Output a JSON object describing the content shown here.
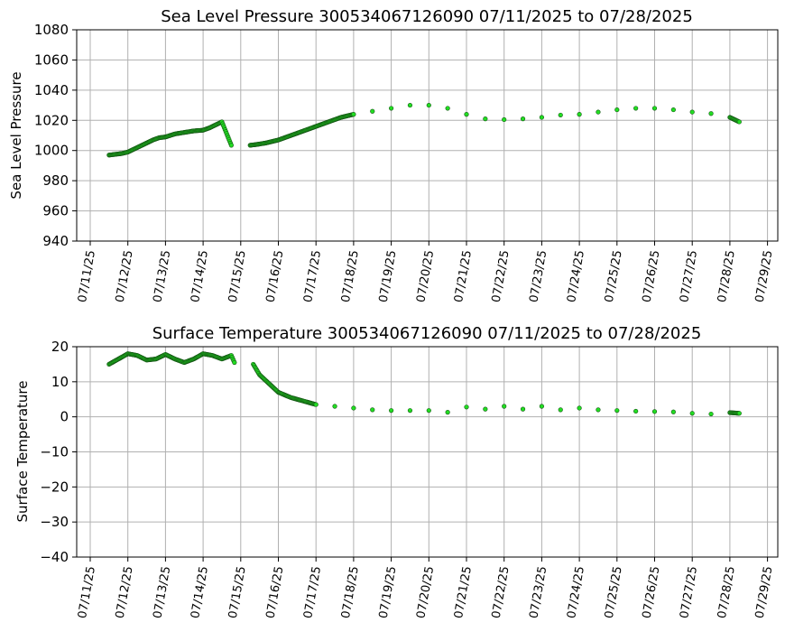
{
  "chart_data": [
    {
      "type": "scatter",
      "title": "Sea Level Pressure 300534067126090  07/11/2025 to 07/28/2025",
      "xlabel": "",
      "ylabel": "Sea Level Pressure",
      "xlim": [
        "2025-07-11",
        "2025-07-29"
      ],
      "ylim": [
        940,
        1080
      ],
      "yticks": [
        940,
        960,
        980,
        1000,
        1020,
        1040,
        1060,
        1080
      ],
      "xtick_labels": [
        "07/11/25",
        "07/12/25",
        "07/13/25",
        "07/14/25",
        "07/15/25",
        "07/16/25",
        "07/17/25",
        "07/18/25",
        "07/19/25",
        "07/20/25",
        "07/21/25",
        "07/22/25",
        "07/23/25",
        "07/24/25",
        "07/25/25",
        "07/26/25",
        "07/27/25",
        "07/28/25",
        "07/29/25"
      ],
      "grid": true,
      "marker_color": "#22dd22",
      "marker_edge": "#145214",
      "points": [
        [
          "2025-07-11T12:00",
          997
        ],
        [
          "2025-07-11T20:00",
          998
        ],
        [
          "2025-07-12T00:00",
          999
        ],
        [
          "2025-07-12T04:00",
          1001
        ],
        [
          "2025-07-12T12:00",
          1005
        ],
        [
          "2025-07-12T16:00",
          1007
        ],
        [
          "2025-07-12T20:00",
          1008.5
        ],
        [
          "2025-07-13T00:00",
          1009
        ],
        [
          "2025-07-13T06:00",
          1011
        ],
        [
          "2025-07-13T12:00",
          1012
        ],
        [
          "2025-07-13T18:00",
          1013
        ],
        [
          "2025-07-14T00:00",
          1013.5
        ],
        [
          "2025-07-14T04:00",
          1015
        ],
        [
          "2025-07-14T08:00",
          1017
        ],
        [
          "2025-07-14T12:00",
          1019
        ],
        [
          "2025-07-14T18:00",
          1003.5
        ],
        [
          "2025-07-15T06:00",
          1003.5
        ],
        [
          "2025-07-15T10:00",
          1004
        ],
        [
          "2025-07-15T16:00",
          1005
        ],
        [
          "2025-07-16T00:00",
          1007
        ],
        [
          "2025-07-16T08:00",
          1010
        ],
        [
          "2025-07-16T16:00",
          1013
        ],
        [
          "2025-07-17T00:00",
          1016
        ],
        [
          "2025-07-17T08:00",
          1019
        ],
        [
          "2025-07-17T16:00",
          1022
        ],
        [
          "2025-07-18T00:00",
          1024
        ],
        [
          "2025-07-18T12:00",
          1026
        ],
        [
          "2025-07-19T00:00",
          1028
        ],
        [
          "2025-07-19T12:00",
          1030
        ],
        [
          "2025-07-20T00:00",
          1030
        ],
        [
          "2025-07-20T12:00",
          1028
        ],
        [
          "2025-07-21T00:00",
          1024
        ],
        [
          "2025-07-21T12:00",
          1021
        ],
        [
          "2025-07-22T00:00",
          1020.5
        ],
        [
          "2025-07-22T12:00",
          1021
        ],
        [
          "2025-07-23T00:00",
          1022
        ],
        [
          "2025-07-23T12:00",
          1023.5
        ],
        [
          "2025-07-24T00:00",
          1024
        ],
        [
          "2025-07-24T12:00",
          1025.5
        ],
        [
          "2025-07-25T00:00",
          1027
        ],
        [
          "2025-07-25T12:00",
          1028
        ],
        [
          "2025-07-26T00:00",
          1028
        ],
        [
          "2025-07-26T12:00",
          1027
        ],
        [
          "2025-07-27T00:00",
          1025.5
        ],
        [
          "2025-07-27T12:00",
          1024.5
        ],
        [
          "2025-07-28T00:00",
          1022
        ],
        [
          "2025-07-28T06:00",
          1019
        ]
      ]
    },
    {
      "type": "scatter",
      "title": "Surface Temperature 300534067126090  07/11/2025 to 07/28/2025",
      "xlabel": "",
      "ylabel": "Surface Temperature",
      "xlim": [
        "2025-07-11",
        "2025-07-29"
      ],
      "ylim": [
        -40,
        20
      ],
      "yticks": [
        -40,
        -30,
        -20,
        -10,
        0,
        10,
        20
      ],
      "xtick_labels": [
        "07/11/25",
        "07/12/25",
        "07/13/25",
        "07/14/25",
        "07/15/25",
        "07/16/25",
        "07/17/25",
        "07/18/25",
        "07/19/25",
        "07/20/25",
        "07/21/25",
        "07/22/25",
        "07/23/25",
        "07/24/25",
        "07/25/25",
        "07/26/25",
        "07/27/25",
        "07/28/25",
        "07/29/25"
      ],
      "grid": true,
      "marker_color": "#22dd22",
      "marker_edge": "#145214",
      "points": [
        [
          "2025-07-11T12:00",
          15
        ],
        [
          "2025-07-11T18:00",
          16.5
        ],
        [
          "2025-07-12T00:00",
          18
        ],
        [
          "2025-07-12T06:00",
          17.5
        ],
        [
          "2025-07-12T12:00",
          16.2
        ],
        [
          "2025-07-12T18:00",
          16.5
        ],
        [
          "2025-07-13T00:00",
          17.8
        ],
        [
          "2025-07-13T06:00",
          16.5
        ],
        [
          "2025-07-13T12:00",
          15.5
        ],
        [
          "2025-07-13T18:00",
          16.5
        ],
        [
          "2025-07-14T00:00",
          18
        ],
        [
          "2025-07-14T06:00",
          17.5
        ],
        [
          "2025-07-14T12:00",
          16.5
        ],
        [
          "2025-07-14T18:00",
          17.5
        ],
        [
          "2025-07-14T20:00",
          15.5
        ],
        [
          "2025-07-15T08:00",
          15
        ],
        [
          "2025-07-15T12:00",
          12
        ],
        [
          "2025-07-15T18:00",
          9.5
        ],
        [
          "2025-07-16T00:00",
          7
        ],
        [
          "2025-07-16T08:00",
          5.5
        ],
        [
          "2025-07-16T16:00",
          4.5
        ],
        [
          "2025-07-17T00:00",
          3.5
        ],
        [
          "2025-07-17T12:00",
          3
        ],
        [
          "2025-07-18T00:00",
          2.5
        ],
        [
          "2025-07-18T12:00",
          2
        ],
        [
          "2025-07-19T00:00",
          1.8
        ],
        [
          "2025-07-19T12:00",
          1.8
        ],
        [
          "2025-07-20T00:00",
          1.8
        ],
        [
          "2025-07-20T12:00",
          1.3
        ],
        [
          "2025-07-21T00:00",
          2.8
        ],
        [
          "2025-07-21T12:00",
          2.2
        ],
        [
          "2025-07-22T00:00",
          3
        ],
        [
          "2025-07-22T12:00",
          2.2
        ],
        [
          "2025-07-23T00:00",
          3
        ],
        [
          "2025-07-23T12:00",
          2
        ],
        [
          "2025-07-24T00:00",
          2.5
        ],
        [
          "2025-07-24T12:00",
          2
        ],
        [
          "2025-07-25T00:00",
          1.8
        ],
        [
          "2025-07-25T12:00",
          1.6
        ],
        [
          "2025-07-26T00:00",
          1.5
        ],
        [
          "2025-07-26T12:00",
          1.4
        ],
        [
          "2025-07-27T00:00",
          1
        ],
        [
          "2025-07-27T12:00",
          0.8
        ],
        [
          "2025-07-28T00:00",
          1.2
        ],
        [
          "2025-07-28T06:00",
          1
        ]
      ]
    }
  ]
}
